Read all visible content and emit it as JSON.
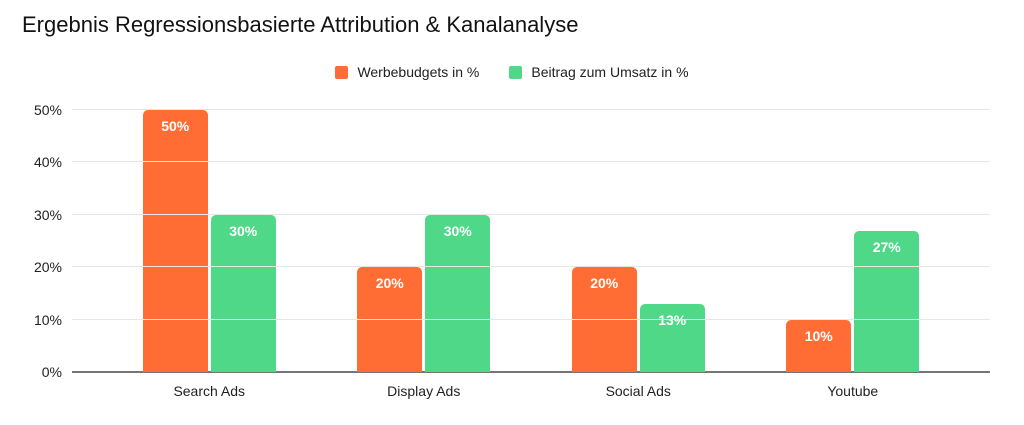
{
  "chart_data": {
    "type": "bar",
    "title": "Ergebnis Regressionsbasierte Attribution & Kanalanalyse",
    "categories": [
      "Search Ads",
      "Display Ads",
      "Social Ads",
      "Youtube"
    ],
    "series": [
      {
        "name": "Werbebudgets in %",
        "color": "#FF6D34",
        "values": [
          50,
          20,
          20,
          10
        ],
        "labels": [
          "50%",
          "20%",
          "20%",
          "10%"
        ]
      },
      {
        "name": "Beitrag zum Umsatz in %",
        "color": "#4ED888",
        "values": [
          30,
          30,
          13,
          27
        ],
        "labels": [
          "30%",
          "30%",
          "13%",
          "27%"
        ]
      }
    ],
    "xlabel": "",
    "ylabel": "",
    "ylim": [
      0,
      50
    ],
    "yticks": [
      "0%",
      "10%",
      "20%",
      "30%",
      "40%",
      "50%"
    ],
    "grid": true,
    "legend_position": "top",
    "style": {
      "grid_color": "#e6e6e6",
      "baseline_color": "#757575",
      "axis_text_color": "#202124",
      "title_color": "#121212",
      "value_label_color": "#ffffff",
      "background": "#ffffff"
    }
  }
}
